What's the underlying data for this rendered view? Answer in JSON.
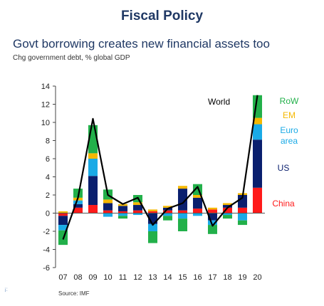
{
  "header": {
    "title": "Fiscal Policy",
    "subtitle": "Govt borrowing creates new financial assets too",
    "units": "Chg government debt, % global GDP"
  },
  "footer": {
    "source": "Source: IMF",
    "corner_mark": "¡:"
  },
  "chart_data": {
    "type": "bar",
    "stacked": true,
    "categories": [
      "07",
      "08",
      "09",
      "10",
      "11",
      "12",
      "13",
      "14",
      "15",
      "16",
      "17",
      "18",
      "19",
      "20"
    ],
    "ylim": [
      -6,
      14
    ],
    "yticks": [
      -6,
      -4,
      -2,
      0,
      2,
      4,
      6,
      8,
      10,
      12,
      14
    ],
    "grid": false,
    "series": [
      {
        "name": "China",
        "color": "#ff1a1a",
        "values": [
          -0.3,
          0.6,
          0.9,
          0.3,
          0.2,
          0.3,
          0.2,
          0.3,
          0.3,
          0.5,
          0.4,
          0.6,
          0.6,
          2.8
        ]
      },
      {
        "name": "US",
        "color": "#0a1f6e",
        "values": [
          -1.0,
          0.4,
          3.2,
          0.8,
          0.6,
          0.6,
          -1.2,
          0.3,
          2.4,
          1.2,
          -0.8,
          0.3,
          1.4,
          5.3
        ]
      },
      {
        "name": "Euro area",
        "color": "#1aaae6",
        "values": [
          -0.6,
          0.4,
          1.9,
          -0.4,
          -0.3,
          -0.2,
          -0.8,
          -0.3,
          -0.6,
          -0.3,
          -0.5,
          -0.2,
          -0.8,
          1.7
        ]
      },
      {
        "name": "EM",
        "color": "#f5b800",
        "values": [
          0.2,
          0.3,
          0.6,
          0.4,
          0.2,
          0.3,
          0.2,
          0.2,
          0.3,
          0.3,
          0.2,
          0.2,
          0.2,
          0.7
        ]
      },
      {
        "name": "RoW",
        "color": "#22b04a",
        "values": [
          -1.6,
          1.0,
          3.1,
          1.1,
          -0.3,
          0.8,
          -1.3,
          -0.5,
          -1.4,
          1.2,
          -1.0,
          -0.4,
          -0.5,
          2.5
        ]
      }
    ],
    "line": {
      "name": "World",
      "color": "#000000",
      "values": [
        -2.9,
        1.7,
        10.4,
        2.0,
        1.0,
        1.7,
        -1.3,
        0.5,
        1.1,
        2.9,
        -1.4,
        0.6,
        1.7,
        13.0
      ]
    },
    "legend": [
      {
        "label": "World",
        "color": "#000000"
      },
      {
        "label": "RoW",
        "color": "#22b04a"
      },
      {
        "label": "EM",
        "color": "#f5b800"
      },
      {
        "label": "Euro area",
        "color": "#1aaae6"
      },
      {
        "label": "US",
        "color": "#0a1f6e"
      },
      {
        "label": "China",
        "color": "#ff1a1a"
      }
    ]
  }
}
